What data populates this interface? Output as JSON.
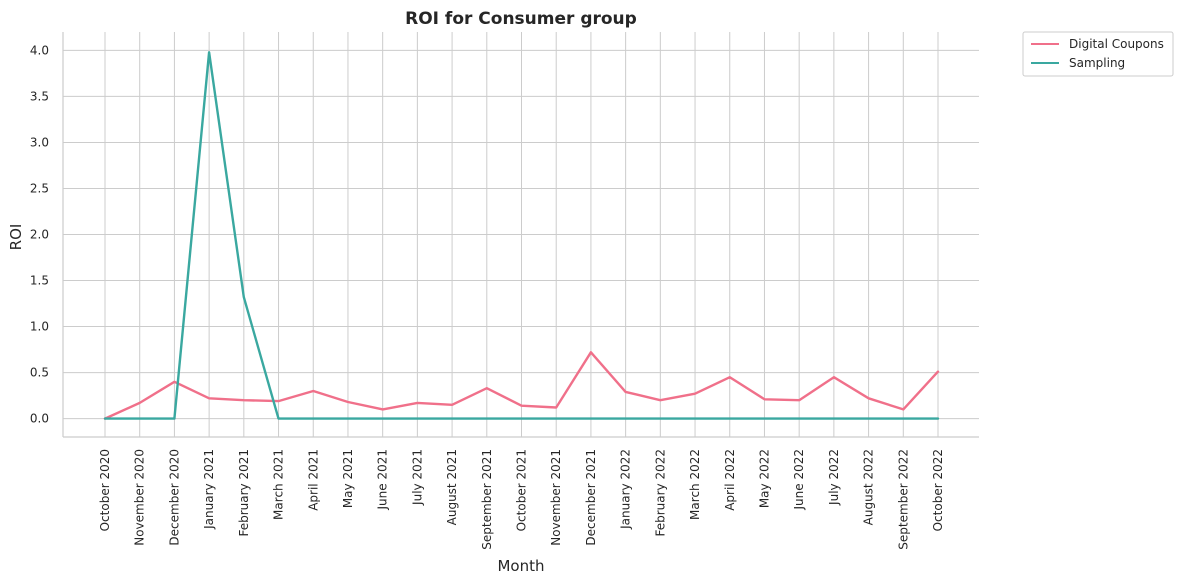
{
  "chart_data": {
    "type": "line",
    "title": "ROI for Consumer group",
    "xlabel": "Month",
    "ylabel": "ROI",
    "ylim": [
      -0.2,
      4.2
    ],
    "yticks": [
      "0.0",
      "0.5",
      "1.0",
      "1.5",
      "2.0",
      "2.5",
      "3.0",
      "3.5",
      "4.0"
    ],
    "grid": true,
    "legend_position": "outside-top-right",
    "categories": [
      "October 2020",
      "November 2020",
      "December 2020",
      "January 2021",
      "February 2021",
      "March 2021",
      "April 2021",
      "May 2021",
      "June 2021",
      "July 2021",
      "August 2021",
      "September 2021",
      "October 2021",
      "November 2021",
      "December 2021",
      "January 2022",
      "February 2022",
      "March 2022",
      "April 2022",
      "May 2022",
      "June 2022",
      "July 2022",
      "August 2022",
      "September 2022",
      "October 2022"
    ],
    "series": [
      {
        "name": "Digital Coupons",
        "color": "#f0708a",
        "values": [
          0.0,
          0.17,
          0.4,
          0.22,
          0.2,
          0.19,
          0.3,
          0.18,
          0.1,
          0.17,
          0.15,
          0.33,
          0.14,
          0.12,
          0.72,
          0.29,
          0.2,
          0.27,
          0.45,
          0.21,
          0.2,
          0.45,
          0.22,
          0.1,
          0.51
        ]
      },
      {
        "name": "Sampling",
        "color": "#3aa8a0",
        "values": [
          0.0,
          0.0,
          0.0,
          3.98,
          1.32,
          0.0,
          0.0,
          0.0,
          0.0,
          0.0,
          0.0,
          0.0,
          0.0,
          0.0,
          0.0,
          0.0,
          0.0,
          0.0,
          0.0,
          0.0,
          0.0,
          0.0,
          0.0,
          0.0,
          0.0
        ]
      }
    ]
  }
}
